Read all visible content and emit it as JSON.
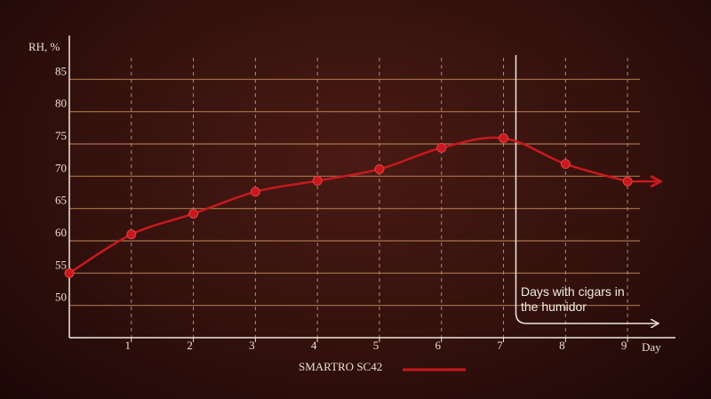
{
  "chart_data": {
    "type": "line",
    "ylabel": "RH, %",
    "xlabel": "Day",
    "x": [
      0,
      1,
      2,
      3,
      4,
      5,
      6,
      7,
      8,
      9
    ],
    "series": [
      {
        "name": "SMARTRO SC42",
        "color": "#c8191e",
        "values": [
          55,
          61,
          64.2,
          67.6,
          69.3,
          71.1,
          74.4,
          75.9,
          71.9,
          69.2
        ]
      }
    ],
    "xlim": [
      0,
      9.5
    ],
    "xticks": [
      1,
      2,
      3,
      4,
      5,
      6,
      7,
      8,
      9
    ],
    "ylim": [
      45,
      90
    ],
    "yticks": [
      50,
      55,
      60,
      65,
      70,
      75,
      80,
      85
    ],
    "grid": true,
    "annotation": {
      "text": "Days with cigars in the humidor",
      "x": 7.2
    }
  }
}
